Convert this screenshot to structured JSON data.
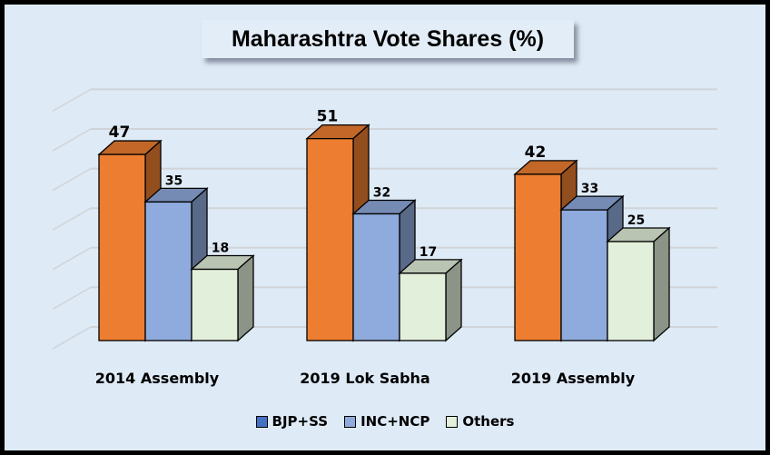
{
  "chart_data": {
    "type": "bar",
    "title": "Maharashtra Vote Shares (%)",
    "categories": [
      "2014 Assembly",
      "2019 Lok Sabha",
      "2019 Assembly"
    ],
    "series": [
      {
        "name": "BJP+SS",
        "values": [
          47,
          51,
          42
        ],
        "color": "#ED7D31",
        "legend_color": "#4472C4"
      },
      {
        "name": "INC+NCP",
        "values": [
          35,
          32,
          33
        ],
        "color": "#8FAADC",
        "legend_color": "#8FAADC"
      },
      {
        "name": "Others",
        "values": [
          18,
          17,
          25
        ],
        "color": "#E2EFDA",
        "legend_color": "#E2EFDA"
      }
    ],
    "ylim": [
      0,
      60
    ],
    "grid": true,
    "style": "3d-column",
    "legend_position": "bottom",
    "data_labels": true
  }
}
